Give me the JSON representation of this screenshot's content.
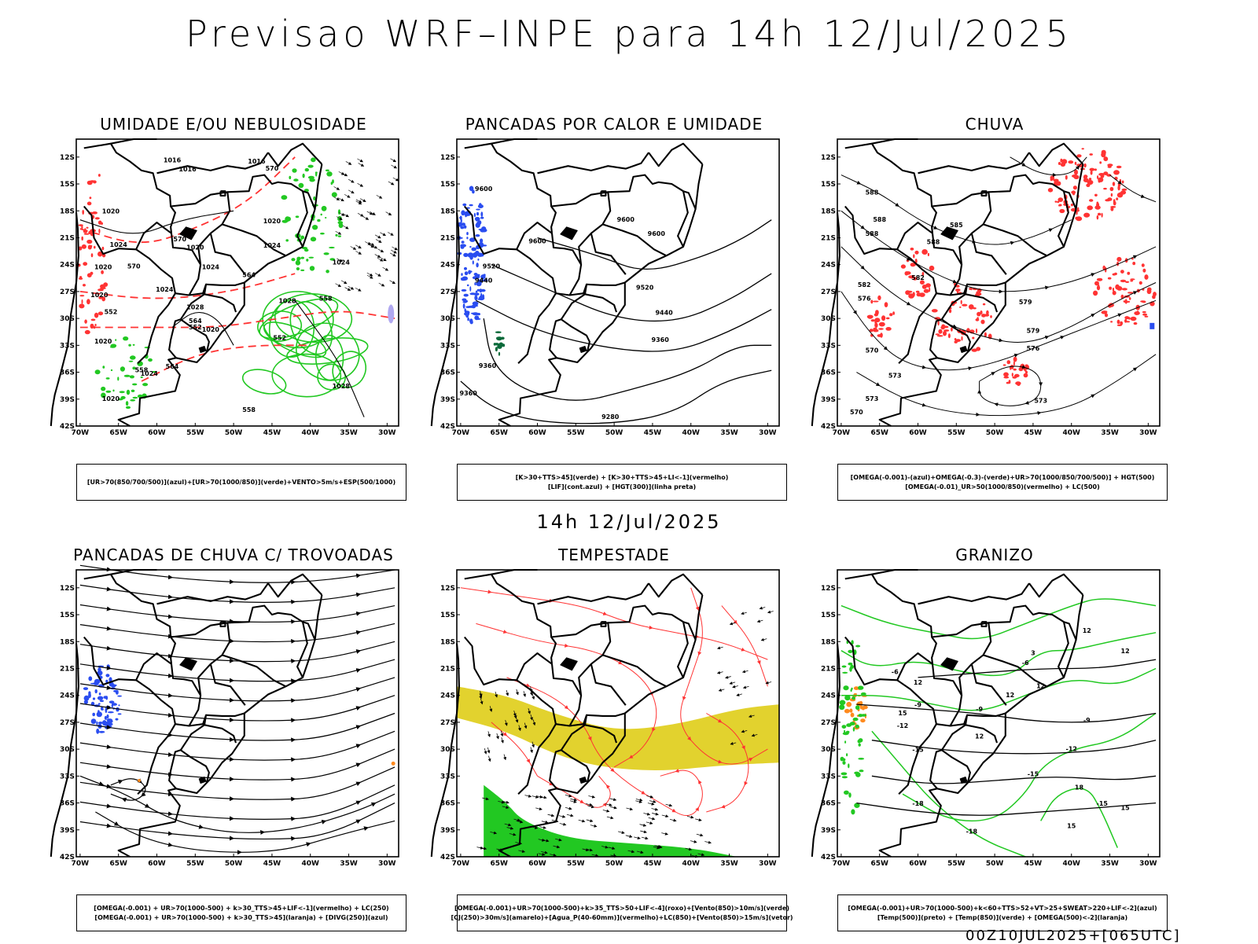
{
  "title": "Previsao WRF–INPE  para 14h 12/Jul/2025",
  "mid_title": "14h 12/Jul/2025",
  "footer": "00Z10JUL2025+[065UTC]",
  "axes": {
    "lat_ticks": [
      "12S",
      "15S",
      "18S",
      "21S",
      "24S",
      "27S",
      "30S",
      "33S",
      "36S",
      "39S",
      "42S"
    ],
    "lon_ticks": [
      "70W",
      "65W",
      "60W",
      "55W",
      "50W",
      "45W",
      "40W",
      "35W",
      "30W"
    ]
  },
  "colors": {
    "contour": "#000000",
    "green": "#22c822",
    "red": "#ff3333",
    "blue": "#2a4df0",
    "yellow": "#e2d22e",
    "orange": "#ff8a1e",
    "purple": "#b0a8f0",
    "dark_green": "#0a6a3a"
  },
  "panels": [
    {
      "title": "UMIDADE E/OU NEBULOSIDADE",
      "legend": [
        "[UR>70(850/700/500)](azul)+[UR>70(1000/850)](verde)+VENTO>5m/s+ESP(500/1000)"
      ],
      "contour_labels": [
        "1016",
        "1016",
        "1016",
        "1020",
        "1020",
        "1020",
        "1024",
        "1024",
        "1024",
        "1028",
        "1028",
        "1028",
        "1020",
        "1024",
        "1024",
        "1020",
        "1020",
        "1020",
        "1020",
        "1024",
        "570",
        "570",
        "570",
        "564",
        "564",
        "558",
        "558",
        "552",
        "552",
        "558",
        "564",
        "552"
      ]
    },
    {
      "title": "PANCADAS POR CALOR E UMIDADE",
      "legend": [
        "[K>30+TTS>45](verde) + [K>30+TTS>45+LI<-1](vermelho)",
        "[LIF](cont.azul) + [HGT(300)](linha preta)"
      ],
      "contour_labels": [
        "9600",
        "9600",
        "9600",
        "9600",
        "9520",
        "9520",
        "9440",
        "9440",
        "9360",
        "9360",
        "9360",
        "9280"
      ]
    },
    {
      "title": "CHUVA",
      "legend": [
        "[OMEGA(-0.001)-(azul)+OMEGA(-0.3)-(verde)+UR>70(1000/850/700/500)] + HGT(500)",
        "[OMEGA(-0.01)_UR>50(1000/850)(vermelho) + LC(500)"
      ],
      "contour_labels": [
        "588",
        "588",
        "588",
        "588",
        "585",
        "582",
        "582",
        "579",
        "579",
        "576",
        "576",
        "573",
        "573",
        "570",
        "570",
        "573"
      ]
    },
    {
      "title": "PANCADAS DE CHUVA C/ TROVOADAS",
      "legend": [
        "[OMEGA(-0.001) + UR>70(1000-500) + k>30_TTS>45+LIF<-1](vermelho) + LC(250)",
        "[OMEGA(-0.001) + UR>70(1000-500) + k>30_TTS>45](laranja) + [DIVG(250)](azul)"
      ],
      "contour_labels": []
    },
    {
      "title": "TEMPESTADE",
      "legend": [
        "[OMEGA(-0.001)+UR>70(1000-500)+k>35_TTS>50+LIF<-4](roxo)+[Vento(850)>10m/s](verde)",
        "[CJ(250)>30m/s](amarelo)+[Agua_P(40-60mm)](vermelho)+LC(850)+[Vento(850)>15m/s](vetor)"
      ],
      "contour_labels": []
    },
    {
      "title": "GRANIZO",
      "legend": [
        "[OMEGA(-0.001)+UR>70(1000-500)+k<60+TTS>52+VT>25+SWEAT>220+LIF<-2](azul)",
        "[Temp(500)](preto) + [Temp(850)](verde) + [OMEGA(500)<-2](laranja)"
      ],
      "contour_labels": [
        "-6",
        "-6",
        "-9",
        "-9",
        "-9",
        "-12",
        "-12",
        "-15",
        "-15",
        "-18",
        "-18",
        "-15",
        "12",
        "12",
        "12",
        "12",
        "12",
        "15",
        "15",
        "18",
        "3",
        "12",
        "15"
      ]
    }
  ]
}
